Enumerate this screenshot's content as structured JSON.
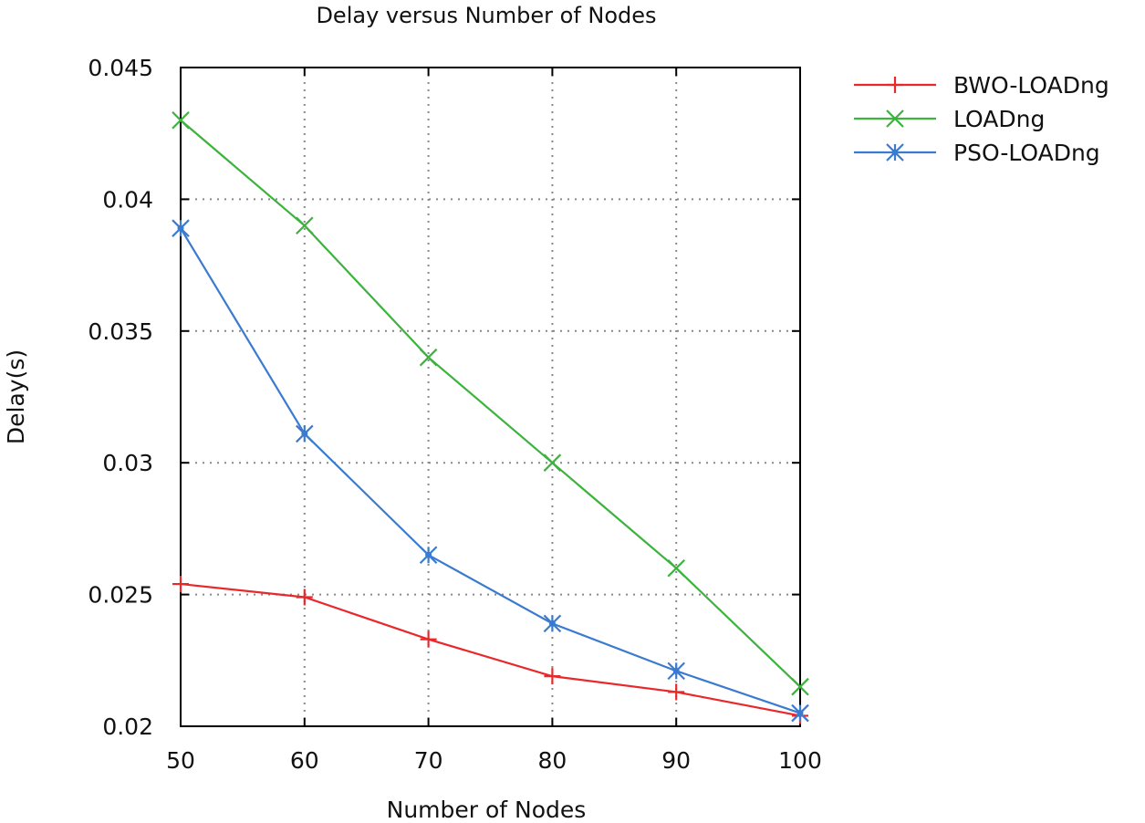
{
  "chart_data": {
    "type": "line",
    "title": "Delay versus Number of Nodes",
    "xlabel": "Number of Nodes",
    "ylabel": "Delay(s)",
    "x": [
      50,
      60,
      70,
      80,
      90,
      100
    ],
    "xlim": [
      50,
      100
    ],
    "ylim": [
      0.02,
      0.045
    ],
    "x_ticks": [
      "50",
      "60",
      "70",
      "80",
      "90",
      "100"
    ],
    "y_ticks": [
      "0.02",
      "0.025",
      "0.03",
      "0.035",
      "0.04",
      "0.045"
    ],
    "grid": true,
    "legend_position": "outside-right-top",
    "series": [
      {
        "name": "BWO-LOADng",
        "color": "#e8282a",
        "marker": "plus",
        "values": [
          0.0254,
          0.0249,
          0.0233,
          0.0219,
          0.0213,
          0.0204
        ]
      },
      {
        "name": "LOADng",
        "color": "#3cb33c",
        "marker": "cross",
        "values": [
          0.043,
          0.039,
          0.034,
          0.03,
          0.026,
          0.0215
        ]
      },
      {
        "name": "PSO-LOADng",
        "color": "#3a7bd0",
        "marker": "star",
        "values": [
          0.0389,
          0.0311,
          0.0265,
          0.0239,
          0.0221,
          0.0205
        ]
      }
    ]
  }
}
